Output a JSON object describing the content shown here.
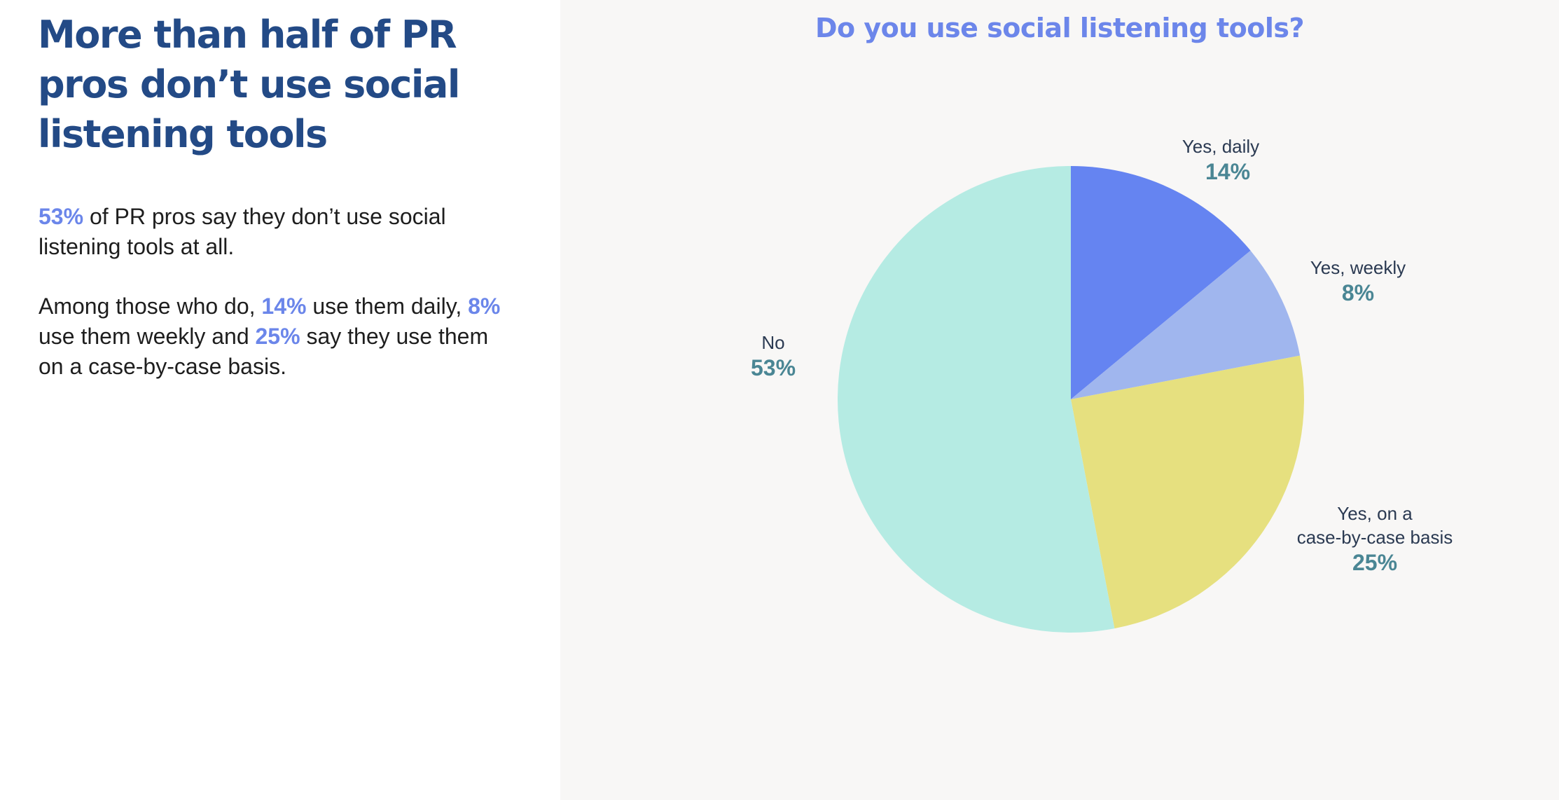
{
  "headline": "More than half of PR pros don’t use social listening tools",
  "paragraph1": {
    "pct": "53%",
    "text": " of PR pros say they don’t use social listening tools at all."
  },
  "paragraph2": {
    "intro": "Among those who do, ",
    "pct_daily": "14%",
    "text_daily": " use them daily, ",
    "pct_weekly": "8%",
    "text_weekly": " use them weekly and ",
    "pct_case": "25%",
    "text_case": " say they use them on a case-by-case basis."
  },
  "colors": {
    "headline": "#234a86",
    "highlight": "#6b86ea",
    "chart_title": "#6c86ea",
    "value_label": "#4a8694",
    "right_panel_bg": "#f8f7f6"
  },
  "chart_data": {
    "type": "pie",
    "title": "Do you use social listening tools?",
    "start_angle_deg": 0,
    "direction": "clockwise",
    "slices": [
      {
        "label": [
          "Yes, daily"
        ],
        "value": 14,
        "display": "14%",
        "color": "#6584f1"
      },
      {
        "label": [
          "Yes, weekly"
        ],
        "value": 8,
        "display": "8%",
        "color": "#a0b6ee"
      },
      {
        "label": [
          "Yes, on a",
          "case-by-case basis"
        ],
        "value": 25,
        "display": "25%",
        "color": "#e6e07f"
      },
      {
        "label": [
          "No"
        ],
        "value": 53,
        "display": "53%",
        "color": "#b5ebe3"
      }
    ]
  }
}
